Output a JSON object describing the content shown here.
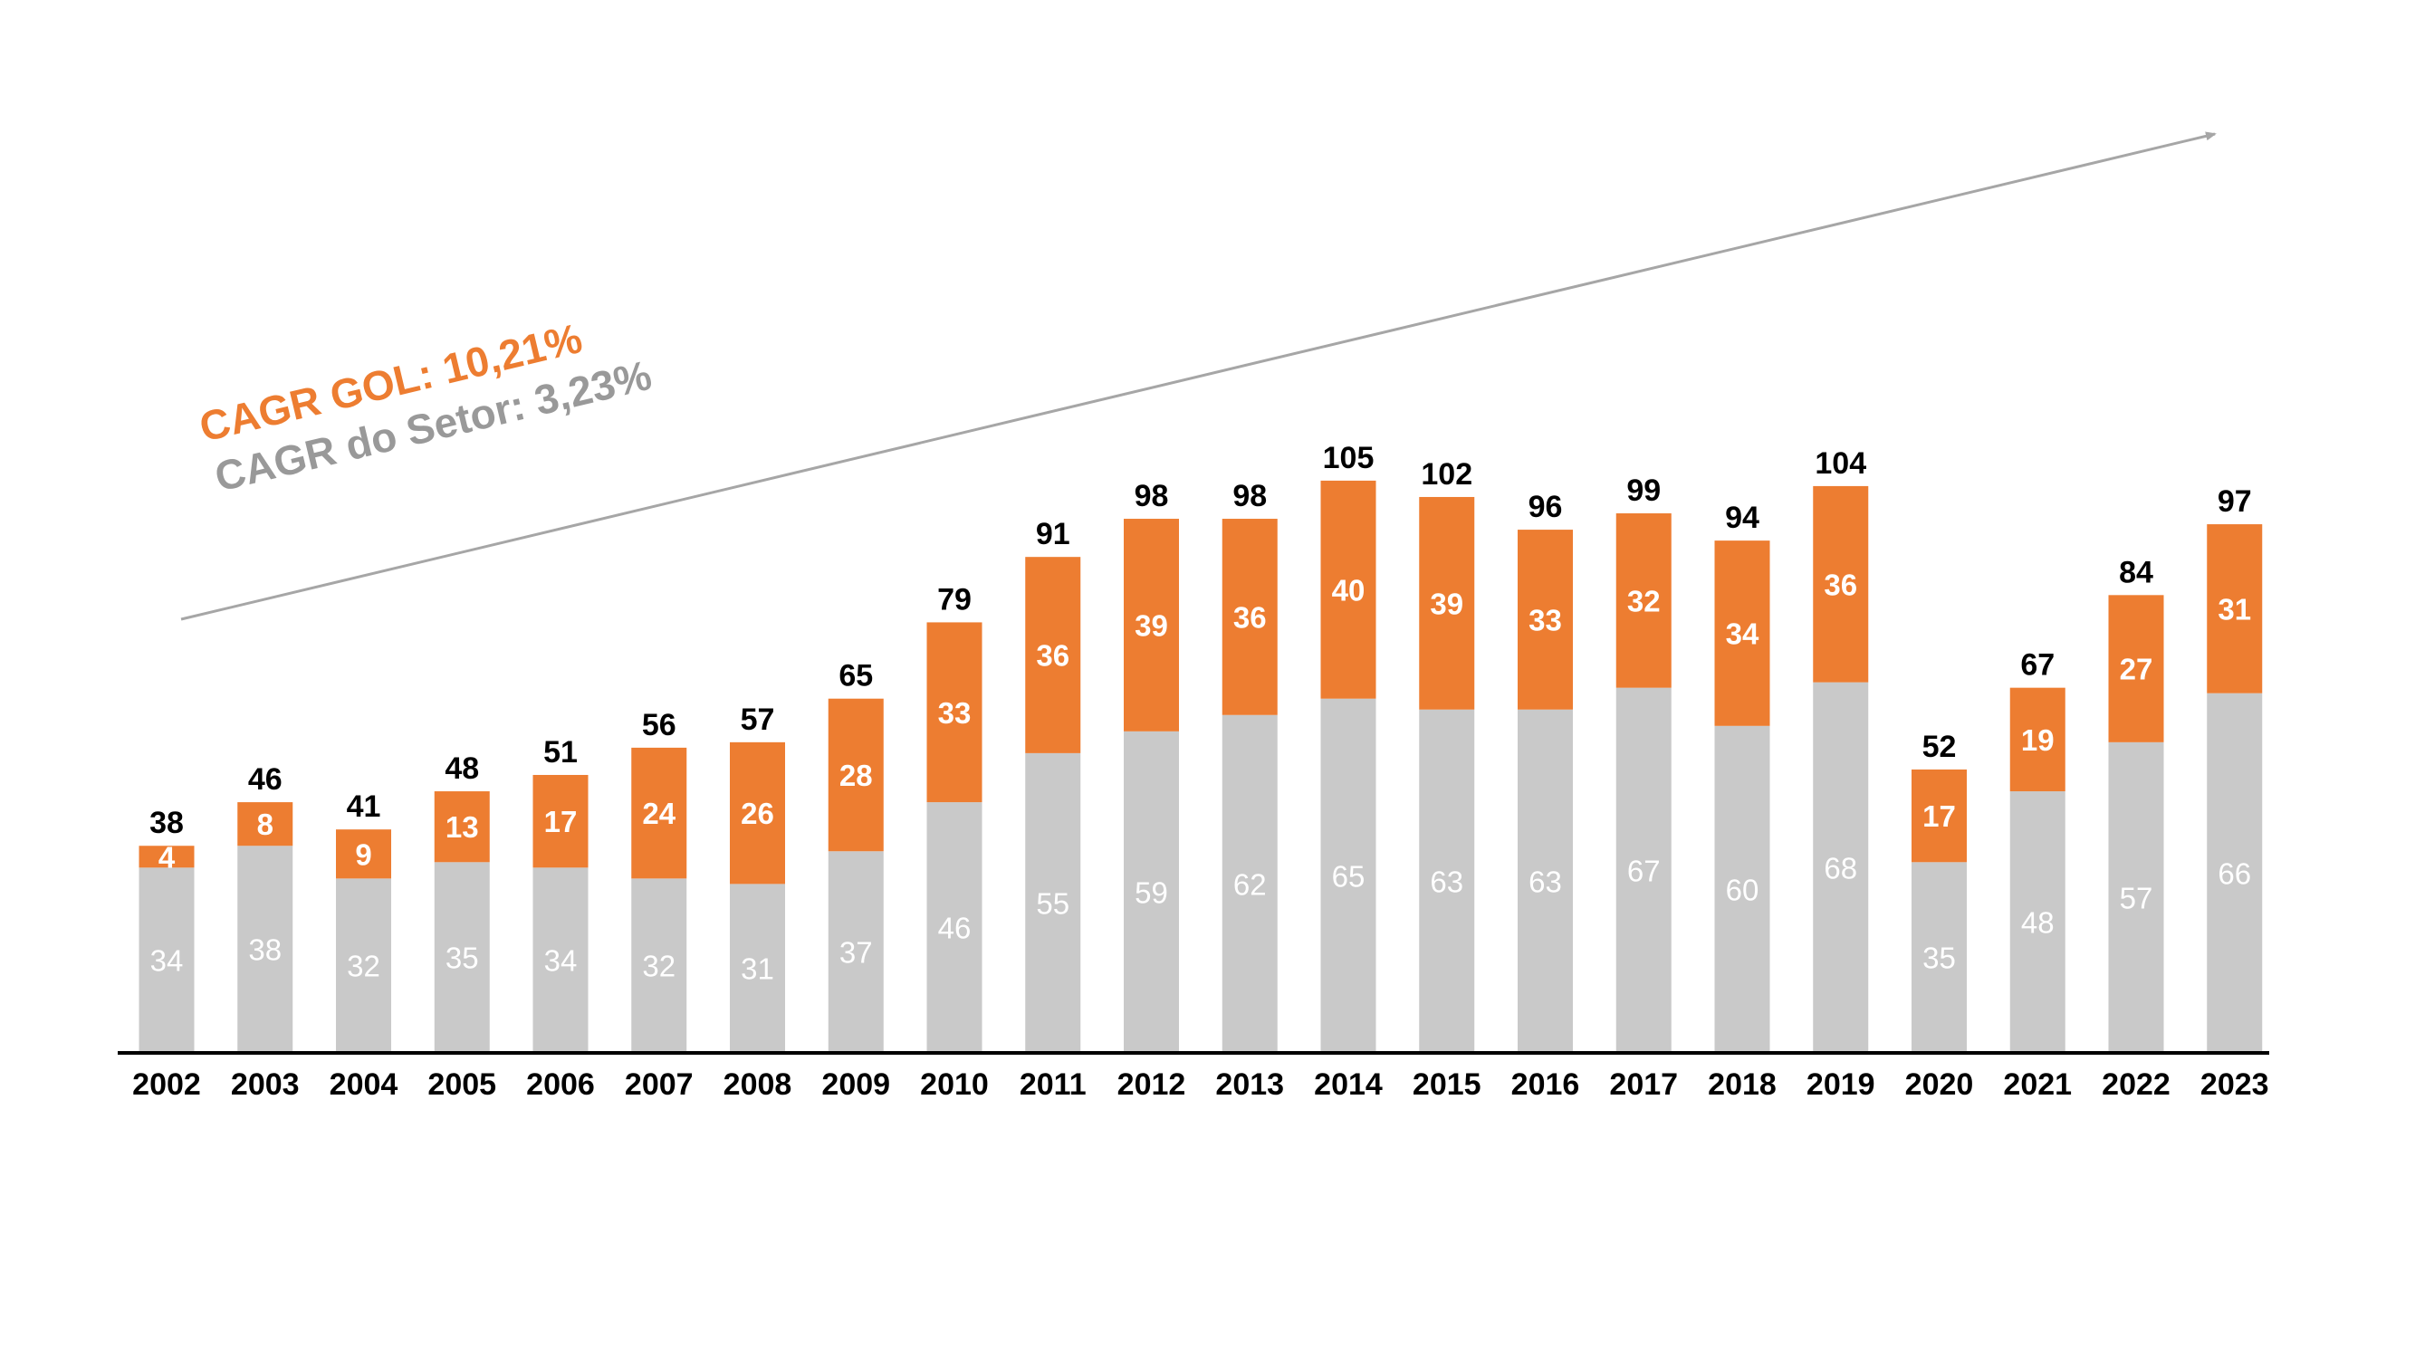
{
  "chart_data": {
    "type": "bar",
    "stacked": true,
    "categories": [
      "2002",
      "2003",
      "2004",
      "2005",
      "2006",
      "2007",
      "2008",
      "2009",
      "2010",
      "2011",
      "2012",
      "2013",
      "2014",
      "2015",
      "2016",
      "2017",
      "2018",
      "2019",
      "2020",
      "2021",
      "2022",
      "2023"
    ],
    "series": [
      {
        "name": "Setor",
        "color": "#c9c9c9",
        "label_color": "#ffffff",
        "values": [
          34,
          38,
          32,
          35,
          34,
          32,
          31,
          37,
          46,
          55,
          59,
          62,
          65,
          63,
          63,
          67,
          60,
          68,
          35,
          48,
          57,
          66
        ]
      },
      {
        "name": "GOL",
        "color": "#ed7d31",
        "label_color": "#ffffff",
        "values": [
          4,
          8,
          9,
          13,
          17,
          24,
          26,
          28,
          33,
          36,
          39,
          36,
          40,
          39,
          33,
          32,
          34,
          36,
          17,
          19,
          27,
          31
        ]
      }
    ],
    "totals": [
      38,
      46,
      41,
      48,
      51,
      56,
      57,
      65,
      79,
      91,
      98,
      98,
      105,
      102,
      96,
      99,
      94,
      104,
      52,
      67,
      84,
      97
    ],
    "ylim": [
      0,
      105
    ],
    "grid": false,
    "legend": "none",
    "xlabel": "",
    "ylabel": "",
    "annotations": {
      "cagr_gol": {
        "text": "CAGR GOL: 10,21%",
        "color": "#ed7d31"
      },
      "cagr_setor": {
        "text": "CAGR do Setor: 3,23%",
        "color": "#999999"
      },
      "trend_arrow_color": "#a6a6a6"
    }
  }
}
